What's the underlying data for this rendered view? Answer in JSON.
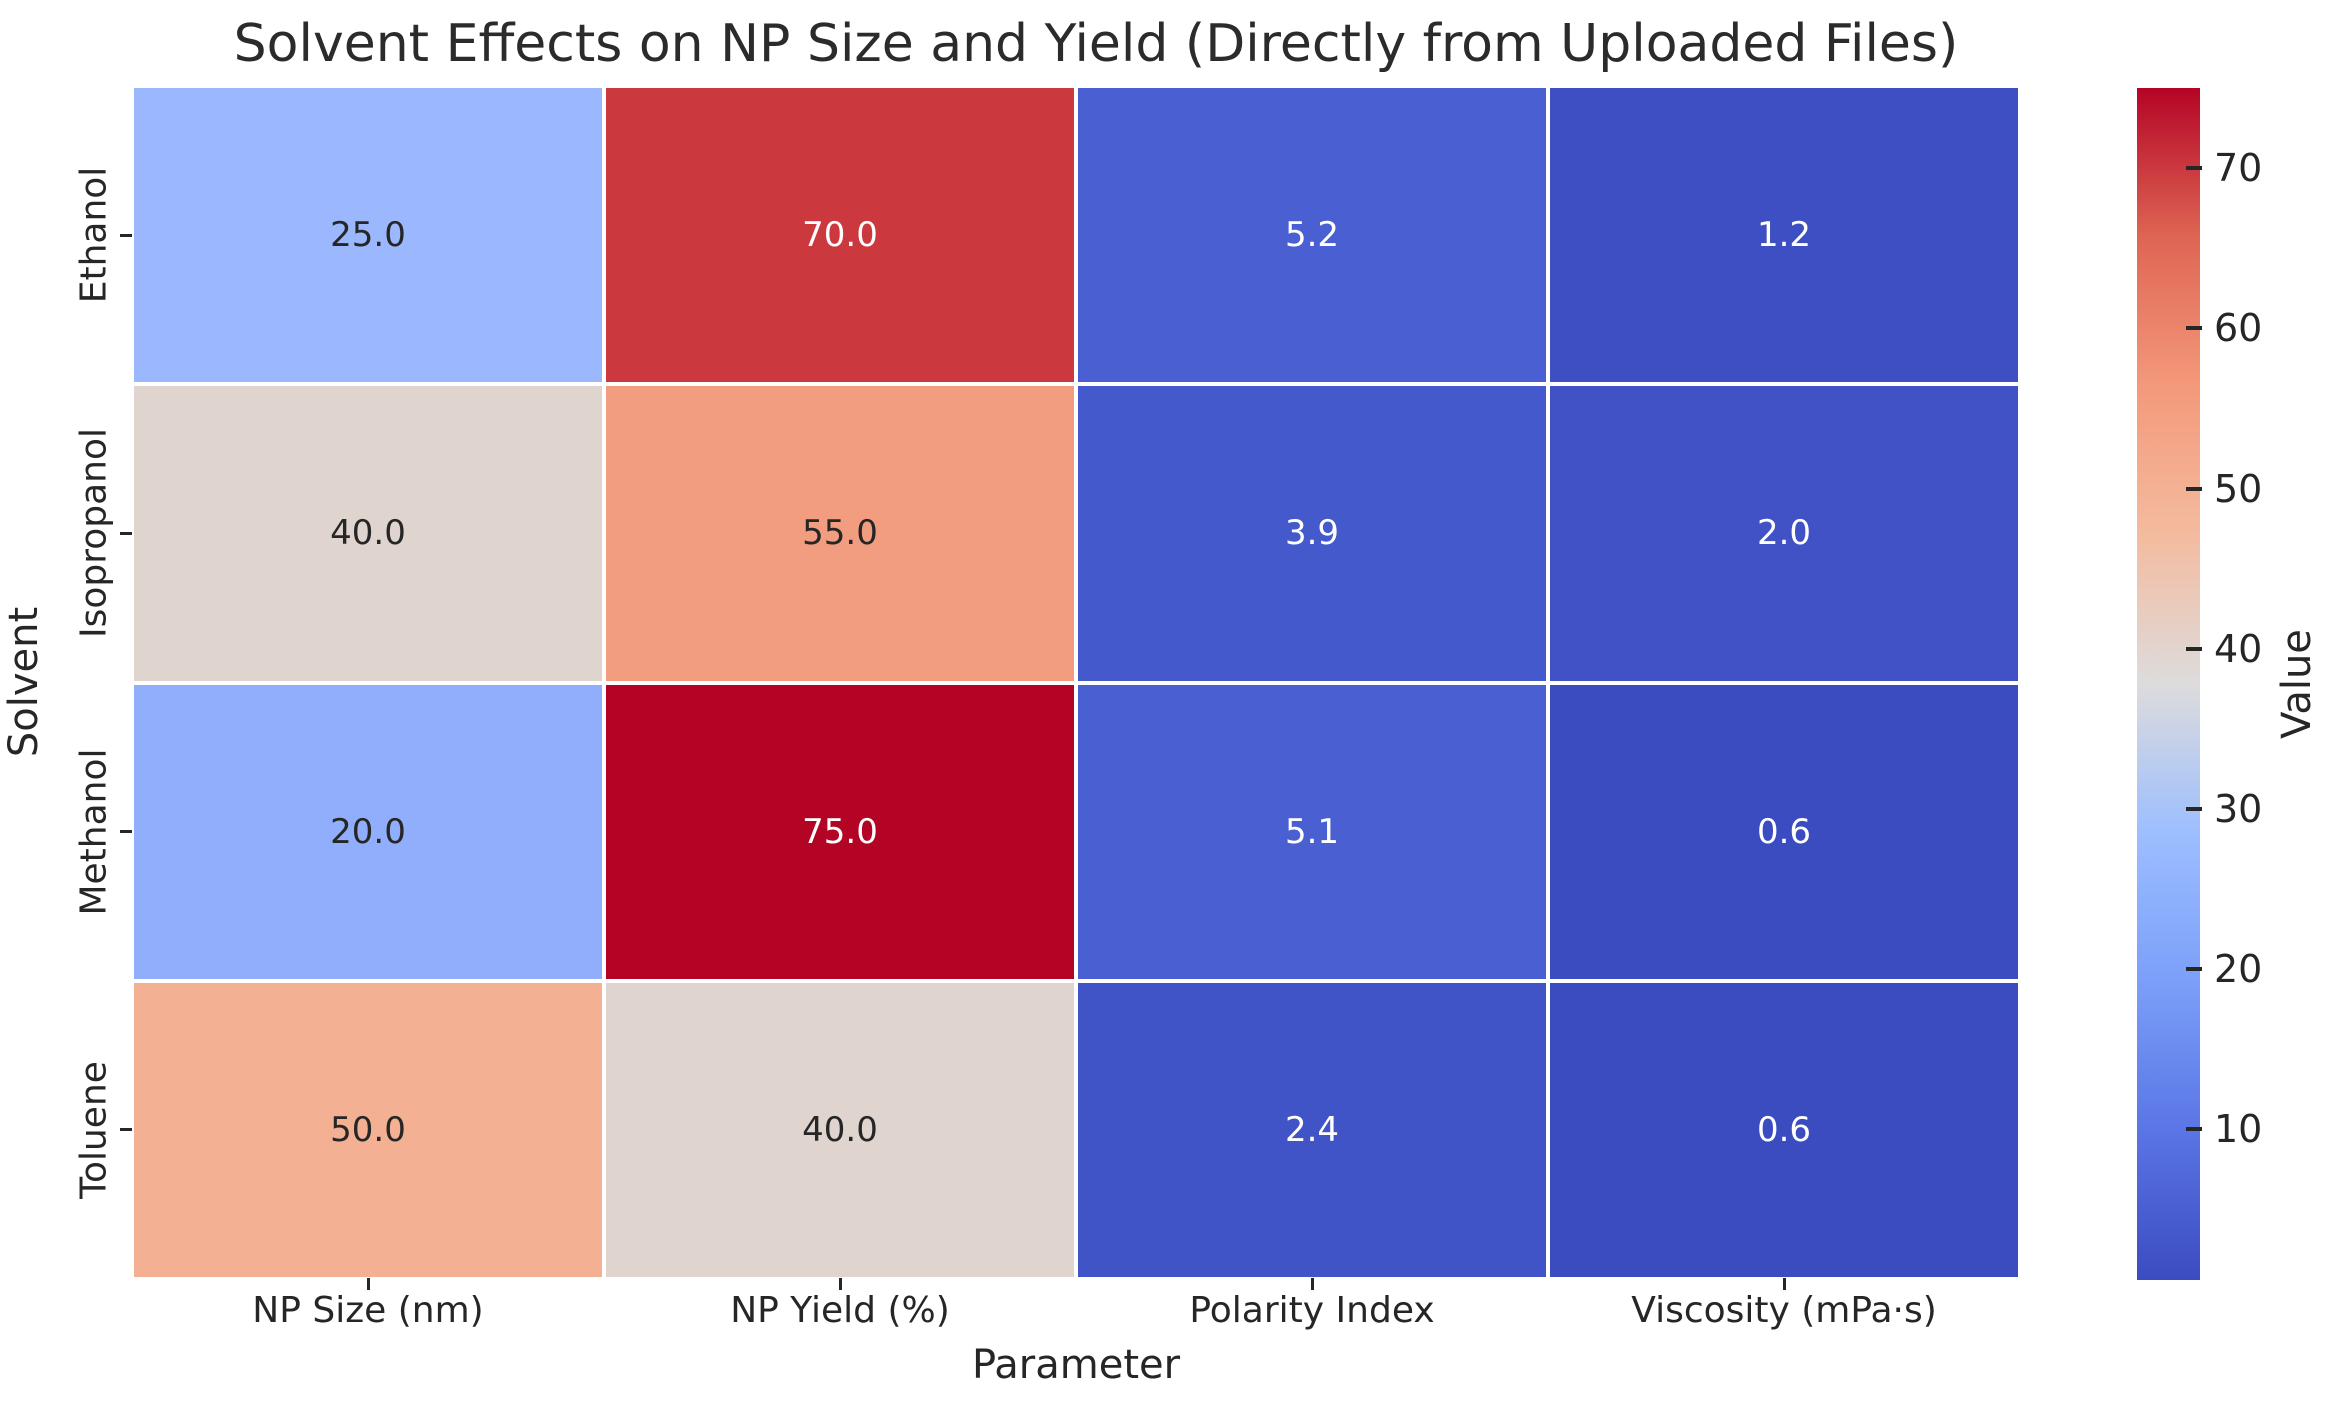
{
  "title": "Solvent Effects on NP Size and Yield (Directly from Uploaded Files)",
  "chart_data": {
    "type": "heatmap",
    "title": "Solvent Effects on NP Size and Yield (Directly from Uploaded Files)",
    "xlabel": "Parameter",
    "ylabel": "Solvent",
    "columns": [
      "NP Size (nm)",
      "NP Yield (%)",
      "Polarity Index",
      "Viscosity (mPa·s)"
    ],
    "rows": [
      "Ethanol",
      "Isopropanol",
      "Methanol",
      "Toluene"
    ],
    "values": [
      [
        25.0,
        70.0,
        5.2,
        1.2
      ],
      [
        40.0,
        55.0,
        3.9,
        2.0
      ],
      [
        20.0,
        75.0,
        5.1,
        0.6
      ],
      [
        50.0,
        40.0,
        2.4,
        0.6
      ]
    ],
    "annotation_format": ".1f",
    "grid": false,
    "grid_line_color": "#ffffff",
    "cell_colors": [
      [
        "#9bb8fe",
        "#cb383e",
        "#4a60d2",
        "#3d4fc2"
      ],
      [
        "#e0d5ce",
        "#f29c80",
        "#4459cb",
        "#4052c6"
      ],
      [
        "#90aefc",
        "#b40426",
        "#4a5fd1",
        "#3b4cc0"
      ],
      [
        "#f4b093",
        "#e0d5ce",
        "#4154c7",
        "#3b4cc0"
      ]
    ],
    "cell_text_colors": [
      [
        "#262626",
        "#ffffff",
        "#ffffff",
        "#ffffff"
      ],
      [
        "#262626",
        "#262626",
        "#ffffff",
        "#ffffff"
      ],
      [
        "#262626",
        "#ffffff",
        "#ffffff",
        "#ffffff"
      ],
      [
        "#262626",
        "#262626",
        "#ffffff",
        "#ffffff"
      ]
    ],
    "colorbar": {
      "label": "Value",
      "vmin": 0.6,
      "vmax": 75.0,
      "ticks": [
        10,
        20,
        30,
        40,
        50,
        60,
        70
      ],
      "colormap": "coolwarm",
      "position": "right",
      "gradient_stops": [
        {
          "t": 0.0,
          "color": "#3b4cc0"
        },
        {
          "t": 0.125,
          "color": "#5a75e5"
        },
        {
          "t": 0.25,
          "color": "#7b9ff9"
        },
        {
          "t": 0.375,
          "color": "#9dbeff"
        },
        {
          "t": 0.5,
          "color": "#dddcdc"
        },
        {
          "t": 0.625,
          "color": "#f4bb9f"
        },
        {
          "t": 0.75,
          "color": "#f4997a"
        },
        {
          "t": 0.875,
          "color": "#de6553"
        },
        {
          "t": 1.0,
          "color": "#b40426"
        }
      ]
    }
  }
}
